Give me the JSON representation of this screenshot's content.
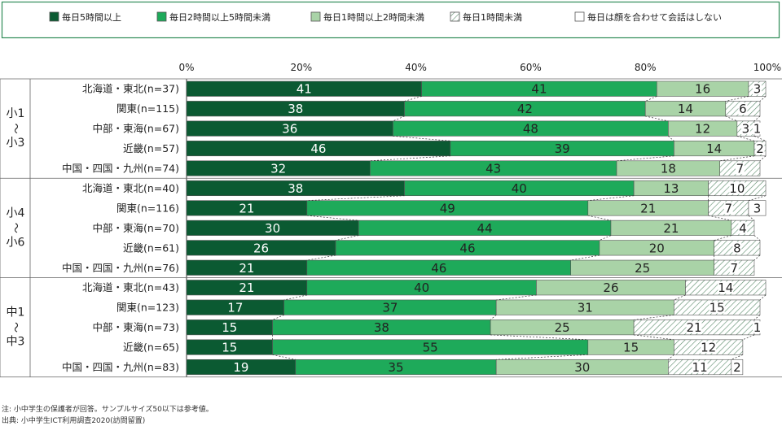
{
  "colors": {
    "legend_border": "#2e8b57",
    "s1": "#0b5a32",
    "s2": "#1eaa5a",
    "s3": "#a9d3a7",
    "s4_hatch_bg": "#ffffff",
    "s4_hatch_line": "#5a8a6a",
    "s5": "#ffffff"
  },
  "notes": {
    "note1": "注: 小中学生の保護者が回答。サンプルサイズ50以下は参考値。",
    "note2": "出典: 小中学生ICT利用調査2020(訪問留置)"
  },
  "chart_data": {
    "type": "bar",
    "orientation": "horizontal",
    "stacked": "percent",
    "xlim": [
      0,
      100
    ],
    "ticks": [
      "0%",
      "20%",
      "40%",
      "60%",
      "80%",
      "100%"
    ],
    "legend_position": "top",
    "series": [
      {
        "name": "毎日5時間以上",
        "style": "s1"
      },
      {
        "name": "毎日2時間以上5時間未満",
        "style": "s2"
      },
      {
        "name": "毎日1時間以上2時間未満",
        "style": "s3"
      },
      {
        "name": "毎日1時間未満",
        "style": "hatch"
      },
      {
        "name": "毎日は顔を合わせて会話はしない",
        "style": "s5"
      }
    ],
    "groups": [
      {
        "label": "小1〜小3",
        "rows": [
          {
            "label": "北海道・東北(n=37)",
            "values": [
              41,
              41,
              16,
              3,
              0
            ]
          },
          {
            "label": "関東(n=115)",
            "values": [
              38,
              42,
              14,
              6,
              0
            ]
          },
          {
            "label": "中部・東海(n=67)",
            "values": [
              36,
              48,
              12,
              3,
              1
            ]
          },
          {
            "label": "近畿(n=57)",
            "values": [
              46,
              39,
              14,
              2,
              0
            ]
          },
          {
            "label": "中国・四国・九州(n=74)",
            "values": [
              32,
              43,
              18,
              7,
              0
            ]
          }
        ]
      },
      {
        "label": "小4〜小6",
        "rows": [
          {
            "label": "北海道・東北(n=40)",
            "values": [
              38,
              40,
              13,
              10,
              0
            ]
          },
          {
            "label": "関東(n=116)",
            "values": [
              21,
              49,
              21,
              7,
              3
            ]
          },
          {
            "label": "中部・東海(n=70)",
            "values": [
              30,
              44,
              21,
              4,
              0
            ]
          },
          {
            "label": "近畿(n=61)",
            "values": [
              26,
              46,
              20,
              8,
              0
            ]
          },
          {
            "label": "中国・四国・九州(n=76)",
            "values": [
              21,
              46,
              25,
              7,
              0
            ]
          }
        ]
      },
      {
        "label": "中1〜中3",
        "rows": [
          {
            "label": "北海道・東北(n=43)",
            "values": [
              21,
              40,
              26,
              14,
              0
            ]
          },
          {
            "label": "関東(n=123)",
            "values": [
              17,
              37,
              31,
              15,
              0
            ]
          },
          {
            "label": "中部・東海(n=73)",
            "values": [
              15,
              38,
              25,
              21,
              1
            ]
          },
          {
            "label": "近畿(n=65)",
            "values": [
              15,
              55,
              15,
              12,
              0
            ]
          },
          {
            "label": "中国・四国・九州(n=83)",
            "values": [
              19,
              35,
              30,
              11,
              2
            ]
          }
        ]
      }
    ]
  }
}
